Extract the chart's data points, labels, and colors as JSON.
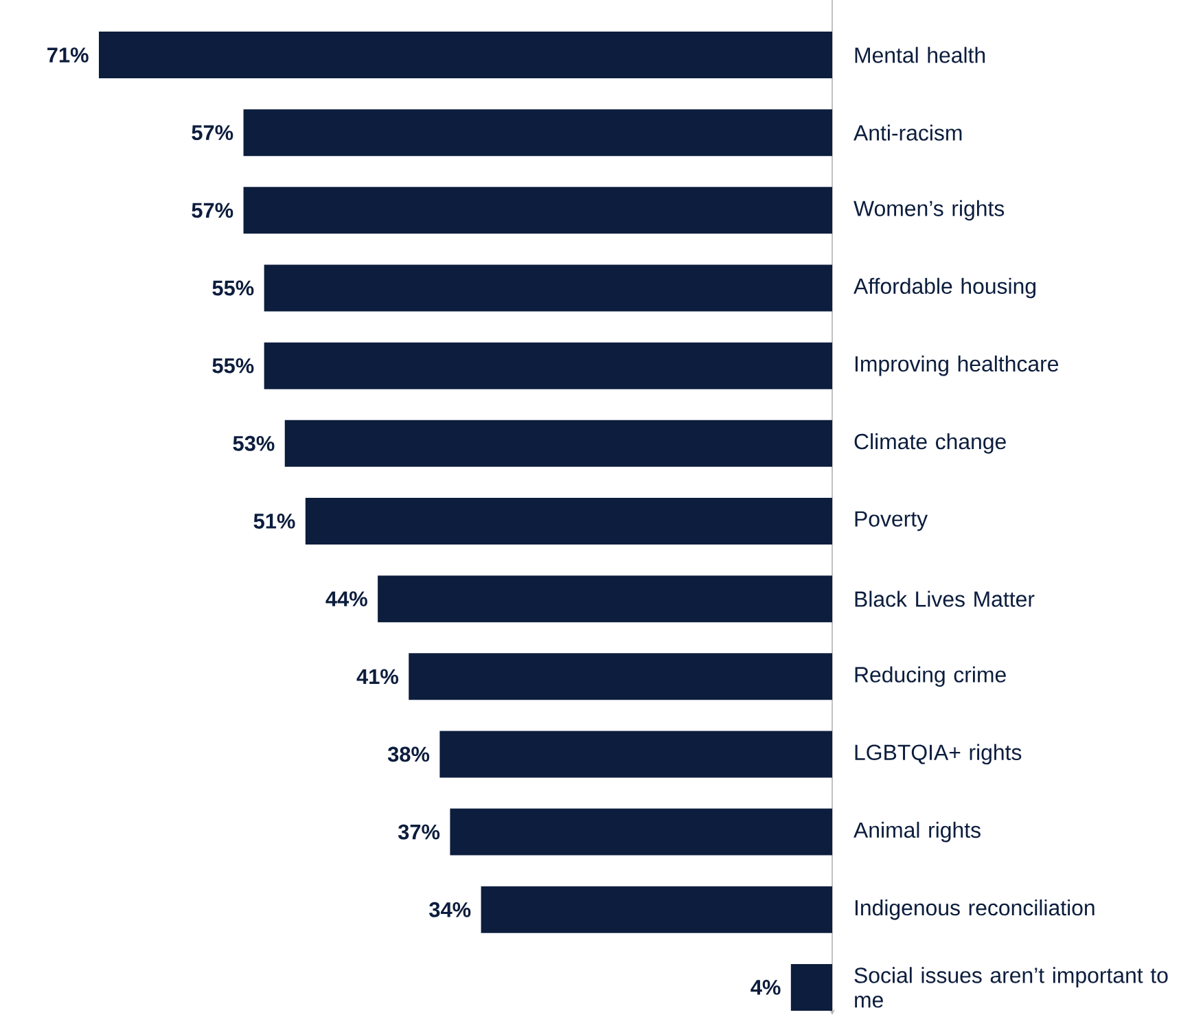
{
  "chart_data": {
    "type": "bar",
    "orientation": "horizontal",
    "categories": [
      "Mental health",
      "Anti-racism",
      "Women’s rights",
      "Affordable housing",
      "Improving healthcare",
      "Climate change",
      "Poverty",
      "Black Lives Matter",
      "Reducing crime",
      "LGBTQIA+ rights",
      "Animal rights",
      "Indigenous reconciliation",
      "Social issues aren’t important to me"
    ],
    "values": [
      71,
      57,
      57,
      55,
      55,
      53,
      51,
      44,
      41,
      38,
      37,
      34,
      4
    ],
    "value_labels": [
      "71%",
      "57%",
      "57%",
      "55%",
      "55%",
      "53%",
      "51%",
      "44%",
      "41%",
      "38%",
      "37%",
      "34%",
      "4%"
    ],
    "color": "#0c1d3d"
  }
}
